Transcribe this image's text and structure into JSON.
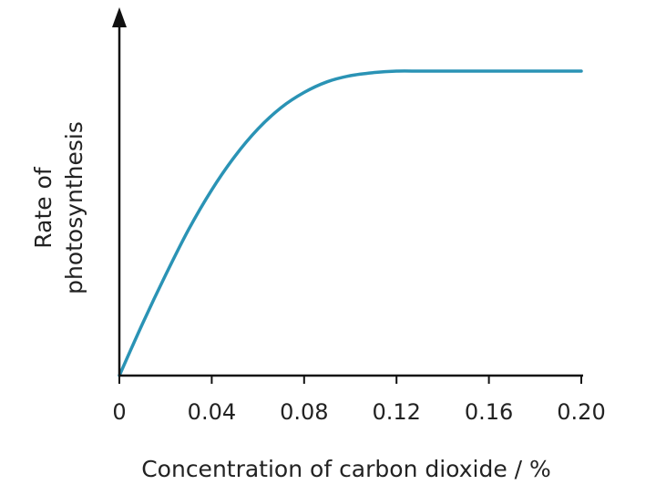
{
  "chart_data": {
    "type": "line",
    "title": "",
    "xlabel": "Concentration of carbon dioxide / %",
    "ylabel_lines": [
      "Rate of",
      "photosynthesis"
    ],
    "xlim": [
      0,
      0.2
    ],
    "ylim": [
      0,
      1.0
    ],
    "y_ticks_labeled": false,
    "x_ticks": [
      0,
      0.04,
      0.08,
      0.12,
      0.16,
      0.2
    ],
    "x_tick_labels": [
      "0",
      "0.04",
      "0.08",
      "0.12",
      "0.16",
      "0.20"
    ],
    "grid": false,
    "legend": "none",
    "series": [
      {
        "color": "#2a93b5",
        "x": [
          0,
          0.01,
          0.02,
          0.03,
          0.04,
          0.05,
          0.06,
          0.07,
          0.08,
          0.09,
          0.1,
          0.11,
          0.12,
          0.13,
          0.14,
          0.16,
          0.18,
          0.2
        ],
        "y": [
          0,
          0.17,
          0.33,
          0.48,
          0.61,
          0.72,
          0.81,
          0.88,
          0.93,
          0.965,
          0.985,
          0.995,
          1.0,
          1.0,
          1.0,
          1.0,
          1.0,
          1.0
        ]
      }
    ]
  },
  "colors": {
    "axis": "#111111",
    "line": "#2a93b5"
  }
}
